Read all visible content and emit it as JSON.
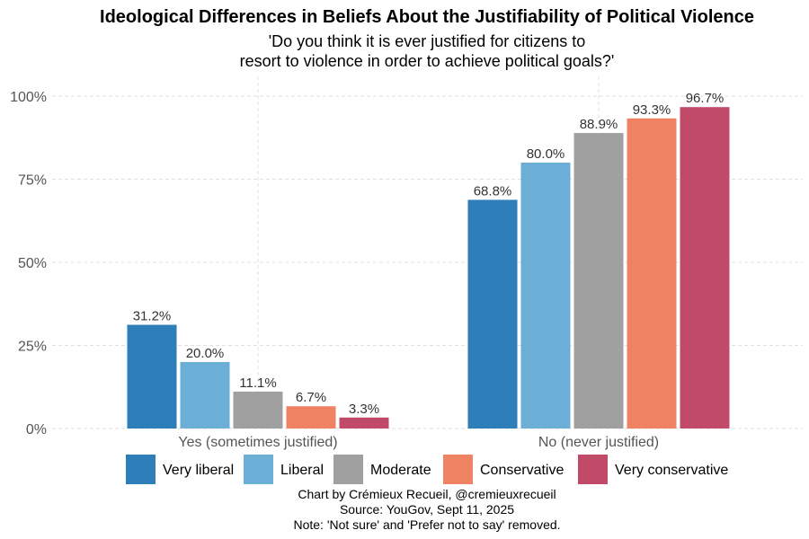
{
  "chart_data": {
    "type": "bar",
    "title": "Ideological Differences in Beliefs About the Justifiability of Political Violence",
    "subtitle": [
      "'Do you think it is ever justified for citizens to",
      "resort to violence in order to achieve political goals?'"
    ],
    "xlabel": "",
    "ylabel": "",
    "ylim": [
      0,
      100
    ],
    "yticks": [
      0,
      25,
      50,
      75,
      100
    ],
    "ytick_labels": [
      "0%",
      "25%",
      "50%",
      "75%",
      "100%"
    ],
    "grid": true,
    "legend_position": "bottom",
    "categories": [
      "Yes (sometimes justified)",
      "No (never justified)"
    ],
    "series": [
      {
        "name": "Very liberal",
        "color": "#2E7EBA",
        "values": [
          31.2,
          68.8
        ],
        "labels": [
          "31.2%",
          "68.8%"
        ]
      },
      {
        "name": "Liberal",
        "color": "#6BAED6",
        "values": [
          20.0,
          80.0
        ],
        "labels": [
          "20.0%",
          "80.0%"
        ]
      },
      {
        "name": "Moderate",
        "color": "#A0A0A0",
        "values": [
          11.1,
          88.9
        ],
        "labels": [
          "11.1%",
          "88.9%"
        ]
      },
      {
        "name": "Conservative",
        "color": "#EF8262",
        "values": [
          6.7,
          93.3
        ],
        "labels": [
          "6.7%",
          "93.3%"
        ]
      },
      {
        "name": "Very conservative",
        "color": "#C04A68",
        "values": [
          3.3,
          96.7
        ],
        "labels": [
          "3.3%",
          "96.7%"
        ]
      }
    ],
    "caption": [
      "Chart by Crémieux Recueil, @cremieuxrecueil",
      "Source: YouGov, Sept 11, 2025",
      "Note: 'Not sure' and 'Prefer not to say' removed."
    ]
  }
}
